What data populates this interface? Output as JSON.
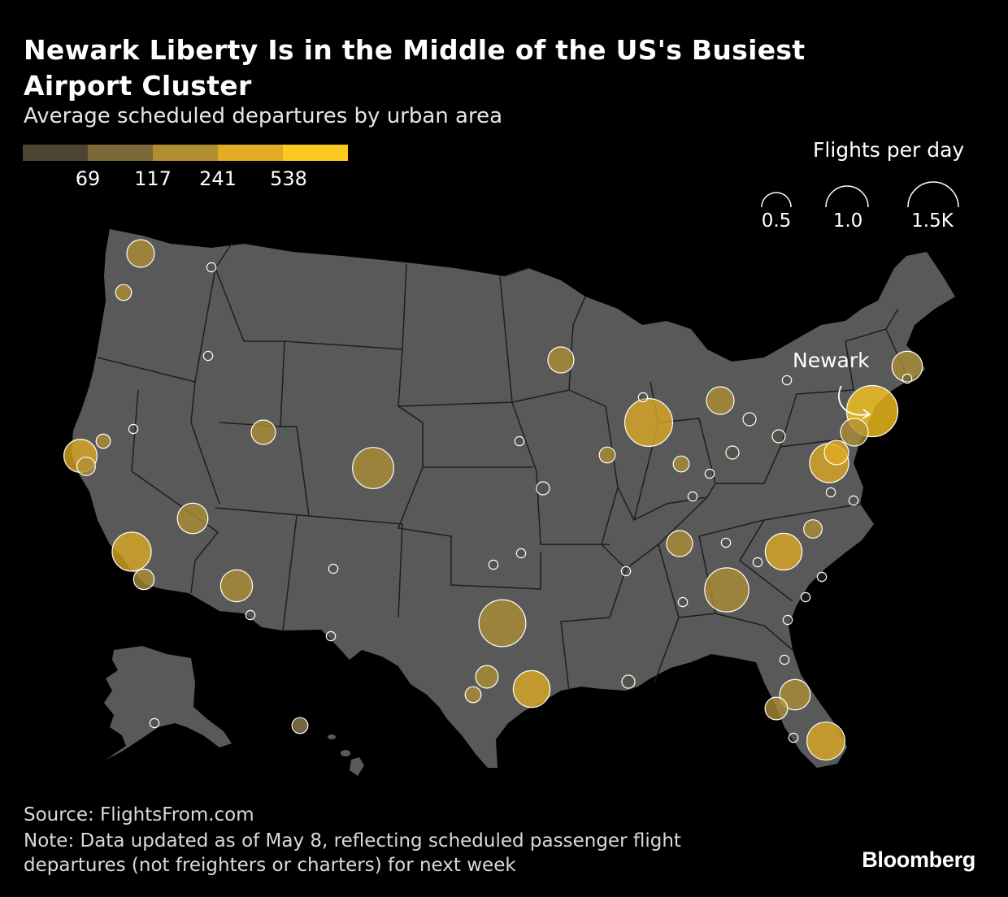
{
  "title": "Newark Liberty Is in the Middle of the US's Busiest Airport Cluster",
  "subtitle": "Average scheduled departures by urban area",
  "color_legend": {
    "colors": [
      "#4d4433",
      "#7d6837",
      "#b08f33",
      "#e0ac22",
      "#fcc91f"
    ],
    "breaks": [
      "69",
      "117",
      "241",
      "538"
    ]
  },
  "size_legend": {
    "title": "Flights per day",
    "labels": [
      "0.5",
      "1.0",
      "1.5K"
    ]
  },
  "annotation": "Newark",
  "source": "Source: FlightsFrom.com",
  "note": "Note: Data updated as of May 8, reflecting scheduled passenger flight departures (not freighters or charters) for next week",
  "brand": "Bloomberg",
  "colors": {
    "background": "#000000",
    "land": "#595959",
    "borders": "#1a1a1a",
    "bubble_stroke": "#ffffff"
  },
  "chart_data": {
    "type": "bubble-map",
    "size_unit": "flights per day",
    "color_unit": "average scheduled departures",
    "points": [
      {
        "area": "Seattle",
        "flights": 0.45,
        "tier": 2
      },
      {
        "area": "Portland",
        "flights": 0.15,
        "tier": 2
      },
      {
        "area": "Spokane",
        "flights": 0.05,
        "tier": 0
      },
      {
        "area": "Boise",
        "flights": 0.05,
        "tier": 0
      },
      {
        "area": "Reno",
        "flights": 0.05,
        "tier": 0
      },
      {
        "area": "Sacramento",
        "flights": 0.12,
        "tier": 2
      },
      {
        "area": "San Francisco",
        "flights": 0.65,
        "tier": 3
      },
      {
        "area": "San Jose",
        "flights": 0.2,
        "tier": 2
      },
      {
        "area": "Salt Lake City",
        "flights": 0.35,
        "tier": 2
      },
      {
        "area": "Las Vegas",
        "flights": 0.55,
        "tier": 2
      },
      {
        "area": "Los Angeles",
        "flights": 0.9,
        "tier": 3
      },
      {
        "area": "San Diego",
        "flights": 0.25,
        "tier": 2
      },
      {
        "area": "Phoenix",
        "flights": 0.6,
        "tier": 2
      },
      {
        "area": "Tucson",
        "flights": 0.05,
        "tier": 0
      },
      {
        "area": "Denver",
        "flights": 1.0,
        "tier": 2
      },
      {
        "area": "El Paso",
        "flights": 0.05,
        "tier": 0
      },
      {
        "area": "Albuquerque",
        "flights": 0.05,
        "tier": 0
      },
      {
        "area": "Minneapolis",
        "flights": 0.4,
        "tier": 2
      },
      {
        "area": "Omaha",
        "flights": 0.05,
        "tier": 0
      },
      {
        "area": "Kansas City",
        "flights": 0.1,
        "tier": 0
      },
      {
        "area": "Oklahoma City",
        "flights": 0.05,
        "tier": 0
      },
      {
        "area": "Tulsa",
        "flights": 0.05,
        "tier": 0
      },
      {
        "area": "Dallas",
        "flights": 1.3,
        "tier": 2
      },
      {
        "area": "Austin",
        "flights": 0.3,
        "tier": 2
      },
      {
        "area": "San Antonio",
        "flights": 0.15,
        "tier": 2
      },
      {
        "area": "Houston",
        "flights": 0.8,
        "tier": 3
      },
      {
        "area": "New Orleans",
        "flights": 0.1,
        "tier": 0
      },
      {
        "area": "Memphis",
        "flights": 0.05,
        "tier": 0
      },
      {
        "area": "Chicago",
        "flights": 1.35,
        "tier": 3
      },
      {
        "area": "Milwaukee",
        "flights": 0.05,
        "tier": 0
      },
      {
        "area": "Detroit",
        "flights": 0.45,
        "tier": 2
      },
      {
        "area": "Cleveland",
        "flights": 0.1,
        "tier": 0
      },
      {
        "area": "Columbus",
        "flights": 0.1,
        "tier": 0
      },
      {
        "area": "Indianapolis",
        "flights": 0.15,
        "tier": 2
      },
      {
        "area": "Cincinnati",
        "flights": 0.05,
        "tier": 0
      },
      {
        "area": "Louisville",
        "flights": 0.05,
        "tier": 0
      },
      {
        "area": "St. Louis",
        "flights": 0.15,
        "tier": 2
      },
      {
        "area": "Nashville",
        "flights": 0.4,
        "tier": 2
      },
      {
        "area": "Knoxville",
        "flights": 0.05,
        "tier": 0
      },
      {
        "area": "Birmingham",
        "flights": 0.05,
        "tier": 0
      },
      {
        "area": "Atlanta",
        "flights": 1.15,
        "tier": 2
      },
      {
        "area": "Charlotte",
        "flights": 0.8,
        "tier": 3
      },
      {
        "area": "Raleigh-Durham",
        "flights": 0.2,
        "tier": 2
      },
      {
        "area": "Greenville",
        "flights": 0.05,
        "tier": 0
      },
      {
        "area": "Charleston",
        "flights": 0.05,
        "tier": 0
      },
      {
        "area": "Savannah",
        "flights": 0.05,
        "tier": 0
      },
      {
        "area": "Wilmington",
        "flights": 0.05,
        "tier": 0
      },
      {
        "area": "Pittsburgh",
        "flights": 0.1,
        "tier": 0
      },
      {
        "area": "Washington DC",
        "flights": 0.9,
        "tier": 3
      },
      {
        "area": "Baltimore",
        "flights": 0.35,
        "tier": 3
      },
      {
        "area": "Richmond",
        "flights": 0.05,
        "tier": 0
      },
      {
        "area": "Norfolk",
        "flights": 0.05,
        "tier": 0
      },
      {
        "area": "Philadelphia",
        "flights": 0.45,
        "tier": 2
      },
      {
        "area": "New York–Newark",
        "flights": 1.55,
        "tier": 4
      },
      {
        "area": "Buffalo",
        "flights": 0.05,
        "tier": 0
      },
      {
        "area": "Albany",
        "flights": 0.05,
        "tier": 0
      },
      {
        "area": "Boston",
        "flights": 0.55,
        "tier": 2
      },
      {
        "area": "Jacksonville",
        "flights": 0.05,
        "tier": 0
      },
      {
        "area": "Orlando",
        "flights": 0.55,
        "tier": 2
      },
      {
        "area": "Tampa",
        "flights": 0.3,
        "tier": 2
      },
      {
        "area": "Fort Myers",
        "flights": 0.05,
        "tier": 0
      },
      {
        "area": "Miami",
        "flights": 0.85,
        "tier": 3
      },
      {
        "area": "Anchorage",
        "flights": 0.05,
        "tier": 0
      },
      {
        "area": "Honolulu",
        "flights": 0.15,
        "tier": 1
      }
    ]
  }
}
